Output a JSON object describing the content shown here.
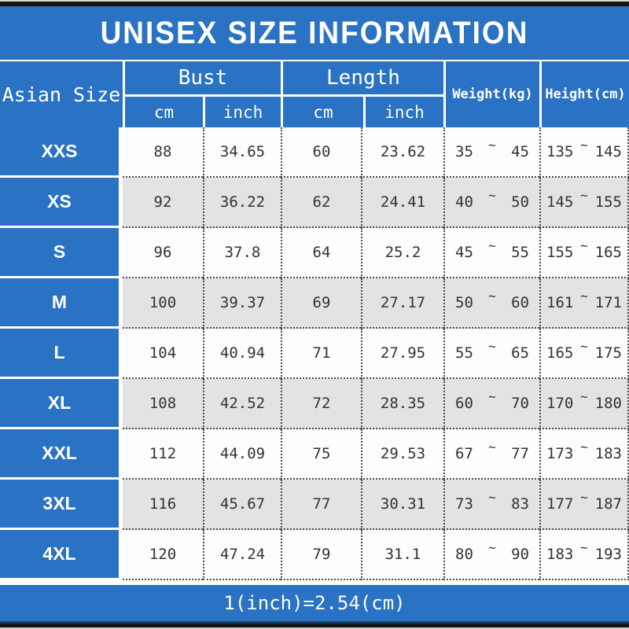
{
  "title": "UNISEX SIZE INFORMATION",
  "footer_note": "1(inch)=2.54(cm)",
  "colors": {
    "accent_blue": "#2a72c3",
    "row_white": "#fdfdfd",
    "row_gray": "#e4e2e2",
    "header_text": "#ffffff",
    "cell_text": "#333333",
    "dotted_border": "#4a4a4a",
    "top_bottom_bar": "#141414"
  },
  "table": {
    "row_header_label": "Asian Size",
    "range_separator": "~",
    "groups": [
      {
        "label": "Bust",
        "sub": [
          "cm",
          "inch"
        ]
      },
      {
        "label": "Length",
        "sub": [
          "cm",
          "inch"
        ]
      }
    ],
    "single_headers": [
      "Weight(kg)",
      "Height(cm)"
    ],
    "rows": [
      {
        "size": "XXS",
        "bust_cm": "88",
        "bust_inch": "34.65",
        "length_cm": "60",
        "length_inch": "23.62",
        "weight": [
          "35",
          "45"
        ],
        "height": [
          "135",
          "145"
        ]
      },
      {
        "size": "XS",
        "bust_cm": "92",
        "bust_inch": "36.22",
        "length_cm": "62",
        "length_inch": "24.41",
        "weight": [
          "40",
          "50"
        ],
        "height": [
          "145",
          "155"
        ]
      },
      {
        "size": "S",
        "bust_cm": "96",
        "bust_inch": "37.8",
        "length_cm": "64",
        "length_inch": "25.2",
        "weight": [
          "45",
          "55"
        ],
        "height": [
          "155",
          "165"
        ]
      },
      {
        "size": "M",
        "bust_cm": "100",
        "bust_inch": "39.37",
        "length_cm": "69",
        "length_inch": "27.17",
        "weight": [
          "50",
          "60"
        ],
        "height": [
          "161",
          "171"
        ]
      },
      {
        "size": "L",
        "bust_cm": "104",
        "bust_inch": "40.94",
        "length_cm": "71",
        "length_inch": "27.95",
        "weight": [
          "55",
          "65"
        ],
        "height": [
          "165",
          "175"
        ]
      },
      {
        "size": "XL",
        "bust_cm": "108",
        "bust_inch": "42.52",
        "length_cm": "72",
        "length_inch": "28.35",
        "weight": [
          "60",
          "70"
        ],
        "height": [
          "170",
          "180"
        ]
      },
      {
        "size": "XXL",
        "bust_cm": "112",
        "bust_inch": "44.09",
        "length_cm": "75",
        "length_inch": "29.53",
        "weight": [
          "67",
          "77"
        ],
        "height": [
          "173",
          "183"
        ]
      },
      {
        "size": "3XL",
        "bust_cm": "116",
        "bust_inch": "45.67",
        "length_cm": "77",
        "length_inch": "30.31",
        "weight": [
          "73",
          "83"
        ],
        "height": [
          "177",
          "187"
        ]
      },
      {
        "size": "4XL",
        "bust_cm": "120",
        "bust_inch": "47.24",
        "length_cm": "79",
        "length_inch": "31.1",
        "weight": [
          "80",
          "90"
        ],
        "height": [
          "183",
          "193"
        ]
      }
    ]
  },
  "chart_data": {
    "type": "table",
    "title": "UNISEX SIZE INFORMATION",
    "note": "1(inch)=2.54(cm)",
    "columns": [
      "Asian Size",
      "Bust cm",
      "Bust inch",
      "Length cm",
      "Length inch",
      "Weight(kg)",
      "Height(cm)"
    ],
    "rows": [
      [
        "XXS",
        "88",
        "34.65",
        "60",
        "23.62",
        "35 ~ 45",
        "135 ~ 145"
      ],
      [
        "XS",
        "92",
        "36.22",
        "62",
        "24.41",
        "40 ~ 50",
        "145 ~ 155"
      ],
      [
        "S",
        "96",
        "37.8",
        "64",
        "25.2",
        "45 ~ 55",
        "155 ~ 165"
      ],
      [
        "M",
        "100",
        "39.37",
        "69",
        "27.17",
        "50 ~ 60",
        "161 ~ 171"
      ],
      [
        "L",
        "104",
        "40.94",
        "71",
        "27.95",
        "55 ~ 65",
        "165 ~ 175"
      ],
      [
        "XL",
        "108",
        "42.52",
        "72",
        "28.35",
        "60 ~ 70",
        "170 ~ 180"
      ],
      [
        "XXL",
        "112",
        "44.09",
        "75",
        "29.53",
        "67 ~ 77",
        "173 ~ 183"
      ],
      [
        "3XL",
        "116",
        "45.67",
        "77",
        "30.31",
        "73 ~ 83",
        "177 ~ 187"
      ],
      [
        "4XL",
        "120",
        "47.24",
        "79",
        "31.1",
        "80 ~ 90",
        "183 ~ 193"
      ]
    ]
  }
}
